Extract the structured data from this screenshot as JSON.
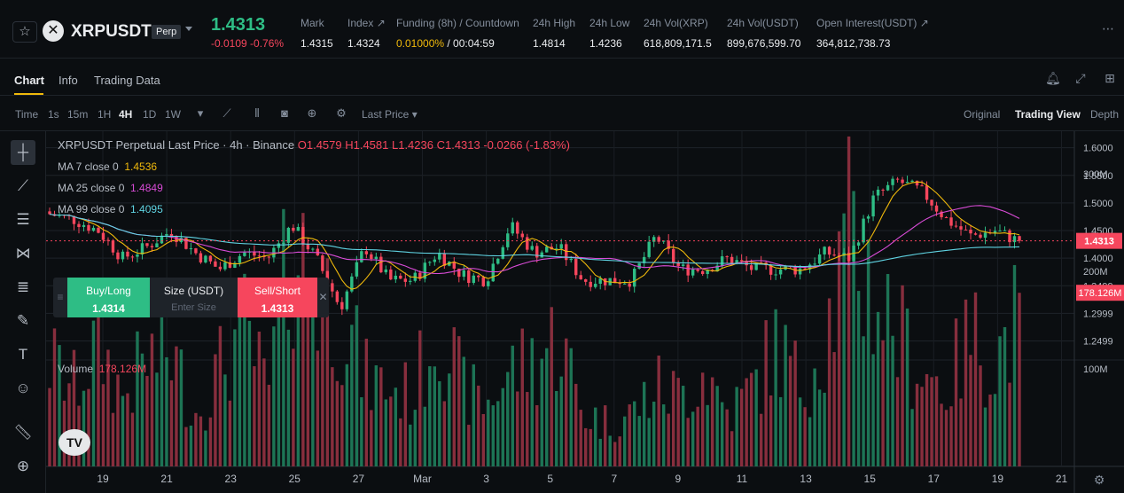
{
  "ticker": {
    "star_icon": "star-icon",
    "coin_icon": "xrp-logo",
    "symbol": "XRPUSDT",
    "badge": "Perp",
    "price": "1.4313",
    "change": "-0.0109 -0.76%",
    "stats": [
      {
        "label": "Mark",
        "value": "1.4315"
      },
      {
        "label": "Index ↗",
        "value": "1.4324"
      },
      {
        "label": "Funding (8h) / Countdown",
        "value_a": "0.01000%",
        "value_b": " / 00:04:59"
      },
      {
        "label": "24h High",
        "value": "1.4814"
      },
      {
        "label": "24h Low",
        "value": "1.4236"
      },
      {
        "label": "24h Vol(XRP)",
        "value": "618,809,171.5"
      },
      {
        "label": "24h Vol(USDT)",
        "value": "899,676,599.70"
      },
      {
        "label": "Open Interest(USDT) ↗",
        "value": "364,812,738.73"
      }
    ],
    "more": "⋯"
  },
  "tabs": [
    {
      "label": "Chart"
    },
    {
      "label": "Info"
    },
    {
      "label": "Trading Data"
    }
  ],
  "toolbar": {
    "intervals": [
      "Time",
      "1s",
      "15m",
      "1H",
      "4H",
      "1D",
      "1W"
    ],
    "price_type": "Last Price",
    "views": [
      "Original",
      "Trading View",
      "Depth"
    ]
  },
  "legend": {
    "title": "XRPUSDT Perpetual Last Price · 4h · Binance",
    "ohlc": "O1.4579  H1.4581  L1.4236  C1.4313  -0.0266 (-1.83%)",
    "ma7_label": "MA 7 close 0",
    "ma7_value": "1.4536",
    "ma25_label": "MA 25 close 0",
    "ma25_value": "1.4849",
    "ma99_label": "MA 99 close 0",
    "ma99_value": "1.4095",
    "volume_label": "Volume",
    "volume_value": "178.126M"
  },
  "order": {
    "buy_label": "Buy/Long",
    "buy_price": "1.4314",
    "size_label": "Size (USDT)",
    "size_placeholder": "Enter Size",
    "sell_label": "Sell/Short",
    "sell_price": "1.4313"
  },
  "logo_text": "TV",
  "chart_data": {
    "type": "candlestick",
    "price_axis": {
      "ticks": [
        "1.6000",
        "1.5500",
        "1.5000",
        "1.4500",
        "1.4000",
        "1.3499",
        "1.2999",
        "1.2499"
      ],
      "current_price": "1.4313"
    },
    "volume_axis": {
      "ticks": [
        "300M",
        "200M",
        "100M"
      ],
      "current_volume": "178.126M"
    },
    "x_ticks": [
      "19",
      "21",
      "23",
      "25",
      "27",
      "Mar",
      "3",
      "5",
      "7",
      "9",
      "11",
      "13",
      "15",
      "17",
      "19",
      "21"
    ],
    "colors": {
      "up": "#2ebd85",
      "down": "#f6465d",
      "ma7": "#f0b90b",
      "ma25": "#d84bd6",
      "ma99": "#5fd3e2"
    },
    "close_keypoints": [
      1.48,
      1.47,
      1.45,
      1.4,
      1.42,
      1.45,
      1.41,
      1.38,
      1.41,
      1.4,
      1.46,
      1.4,
      1.31,
      1.42,
      1.36,
      1.36,
      1.41,
      1.37,
      1.36,
      1.46,
      1.41,
      1.42,
      1.36,
      1.36,
      1.36,
      1.44,
      1.38,
      1.38,
      1.4,
      1.38,
      1.38,
      1.38,
      1.41,
      1.4,
      1.51,
      1.54,
      1.52,
      1.47,
      1.44,
      1.45,
      1.43
    ],
    "volume_keypoints": [
      120,
      90,
      140,
      80,
      120,
      130,
      60,
      110,
      160,
      80,
      260,
      200,
      180,
      100,
      90,
      80,
      170,
      90,
      70,
      110,
      120,
      150,
      60,
      50,
      60,
      90,
      80,
      110,
      60,
      90,
      140,
      90,
      150,
      260,
      200,
      150,
      110,
      90,
      150,
      120,
      178
    ]
  }
}
